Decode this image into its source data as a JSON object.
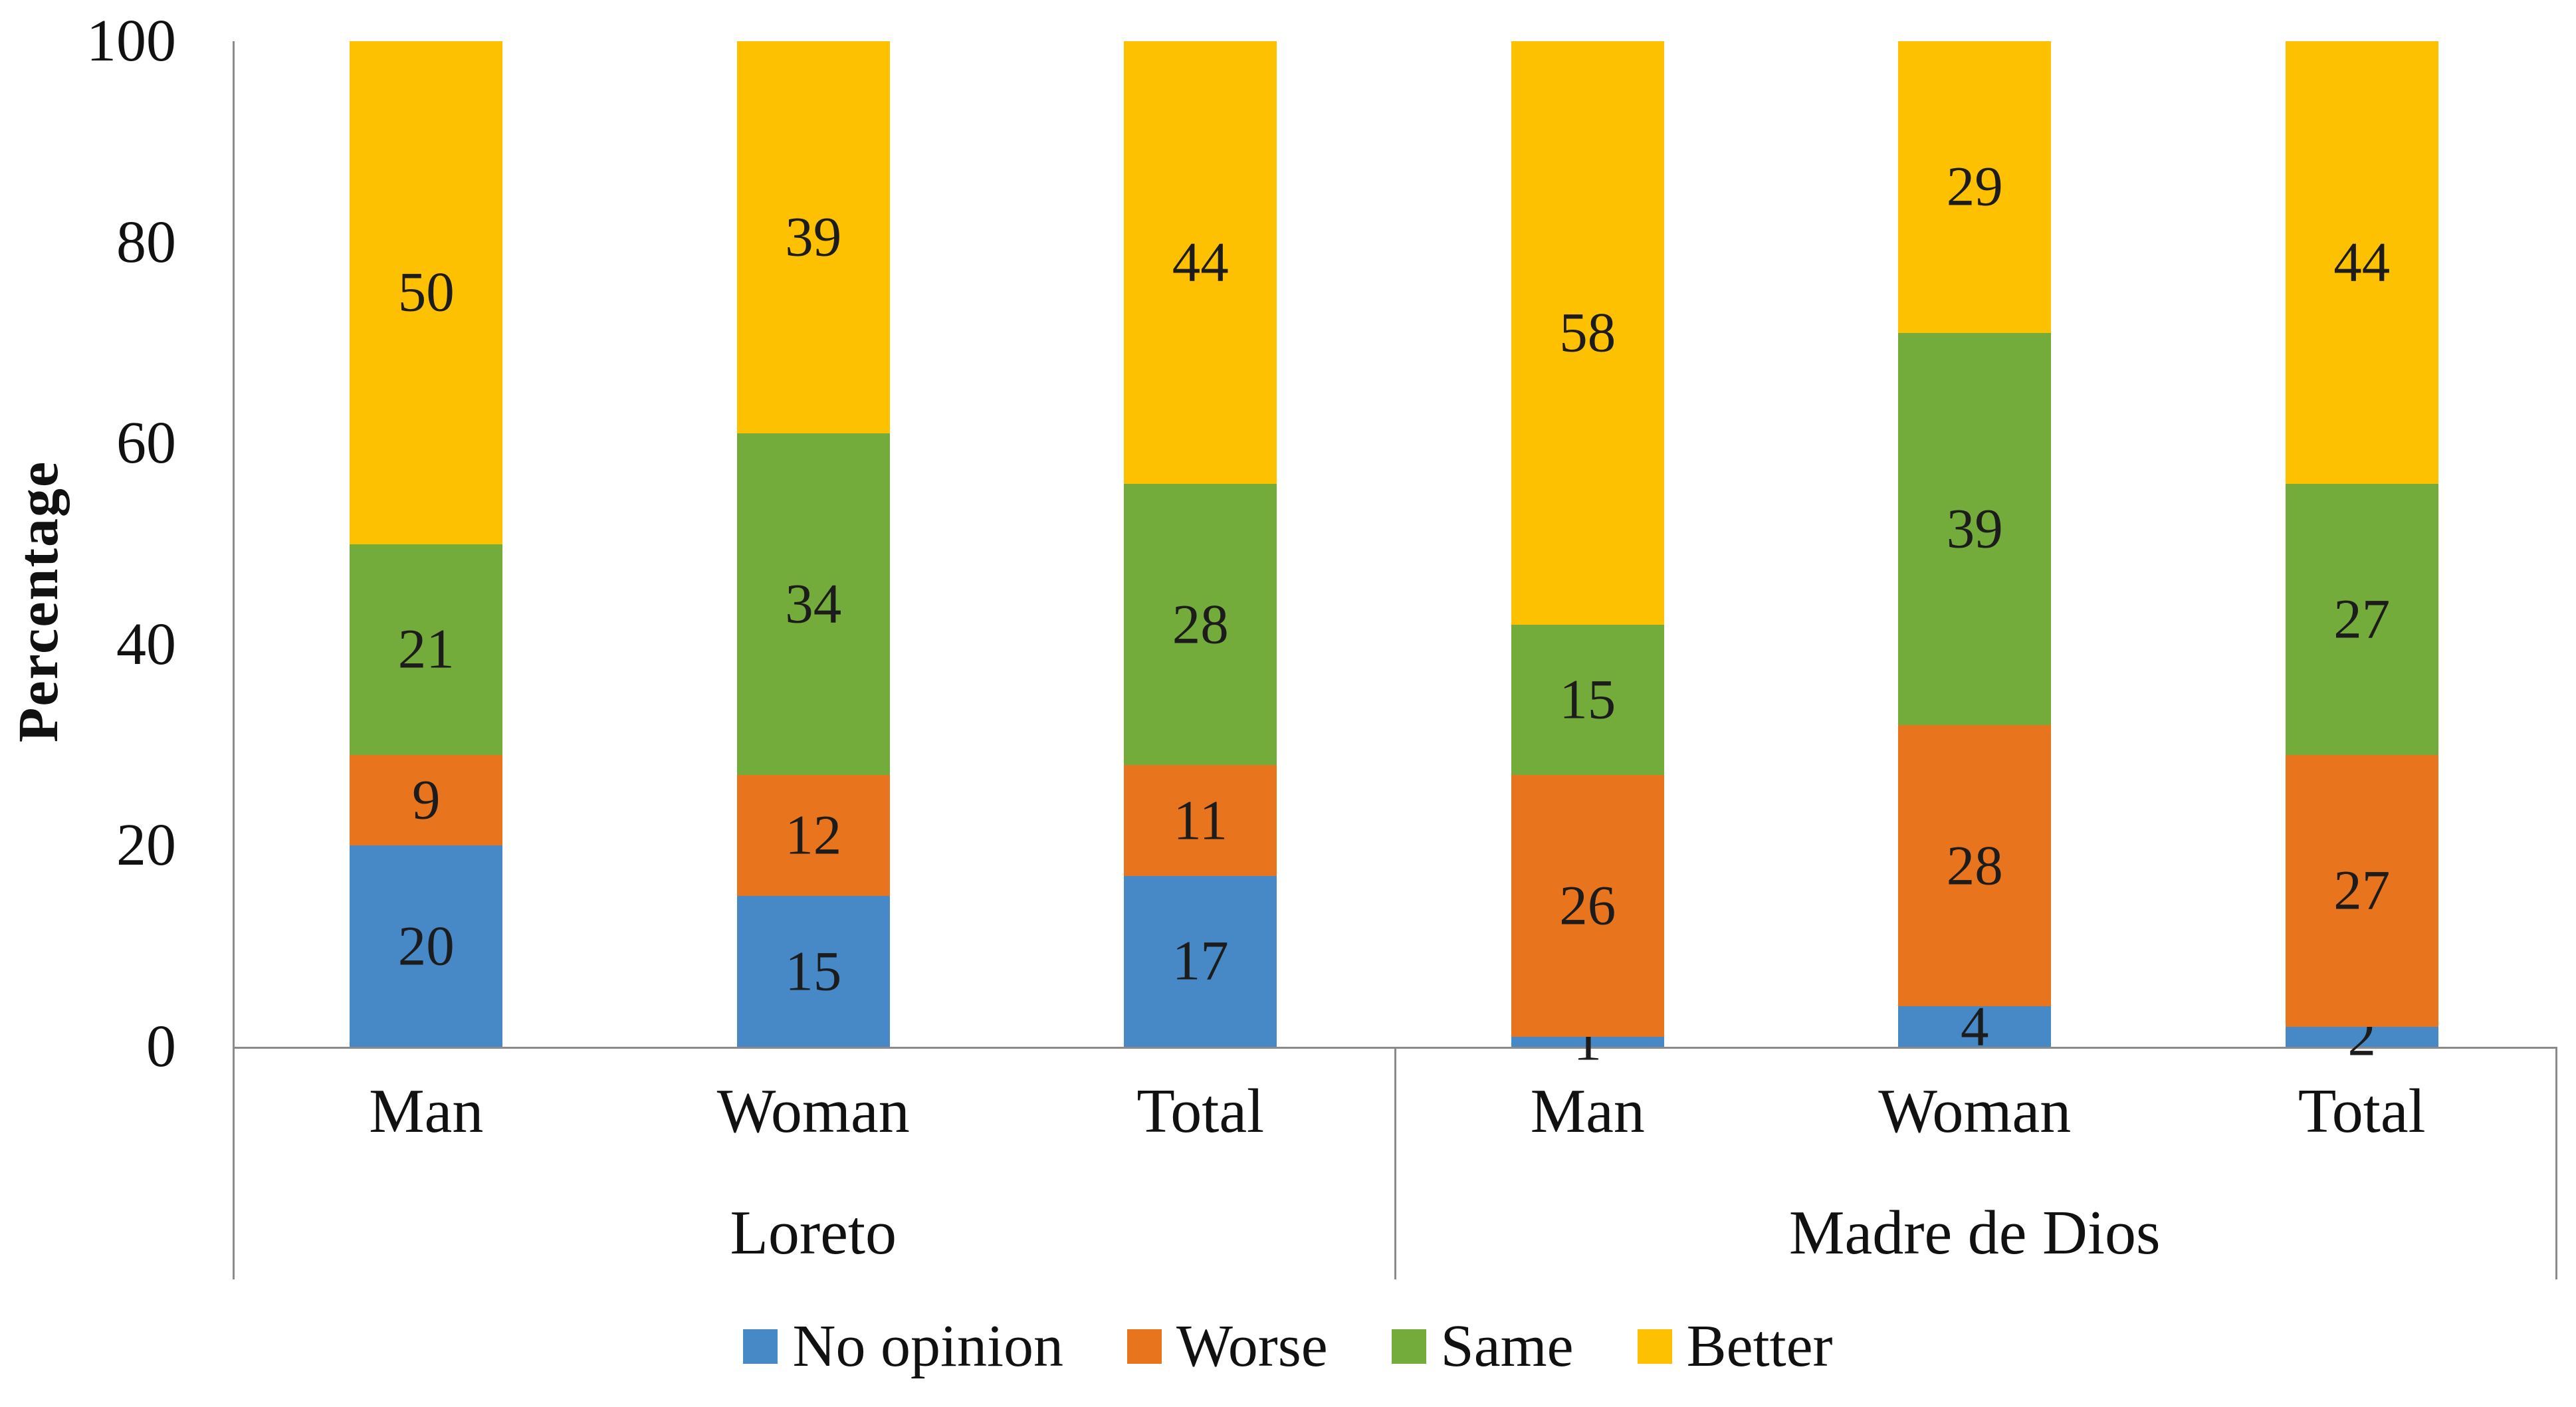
{
  "chart_data": {
    "type": "bar",
    "stacked": true,
    "title": "",
    "ylabel": "Percentage",
    "xlabel": "",
    "ylim": [
      0,
      100
    ],
    "yticks": [
      0,
      20,
      40,
      60,
      80,
      100
    ],
    "grid": false,
    "legend_position": "bottom",
    "groups": [
      "Loreto",
      "Madre de Dios"
    ],
    "categories": [
      "Man",
      "Woman",
      "Total",
      "Man",
      "Woman",
      "Total"
    ],
    "series": [
      {
        "name": "No opinion",
        "color": "#4689C6",
        "values": [
          20,
          15,
          17,
          1,
          4,
          2
        ]
      },
      {
        "name": "Worse",
        "color": "#E8741D",
        "values": [
          9,
          12,
          11,
          26,
          28,
          27
        ]
      },
      {
        "name": "Same",
        "color": "#74AC3C",
        "values": [
          21,
          34,
          28,
          15,
          39,
          27
        ]
      },
      {
        "name": "Better",
        "color": "#FEC101",
        "values": [
          50,
          39,
          44,
          58,
          29,
          44
        ]
      }
    ],
    "colors": {
      "axis_line": "#8a8a8a",
      "label_text": "#1c1c1c"
    }
  }
}
